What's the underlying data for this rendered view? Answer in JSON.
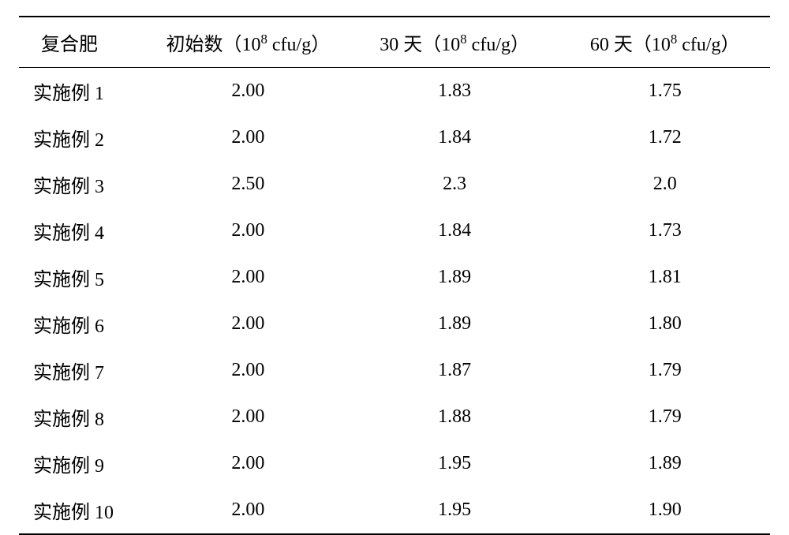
{
  "table": {
    "columns": [
      {
        "label_parts": [
          "复合肥"
        ],
        "class": "col1"
      },
      {
        "label_parts": [
          "初始数（10",
          "8",
          " cfu/g）"
        ],
        "class": "col2"
      },
      {
        "label_parts": [
          "30 天（10",
          "8",
          " cfu/g）"
        ],
        "class": "col3"
      },
      {
        "label_parts": [
          "60 天（10",
          "8",
          " cfu/g）"
        ],
        "class": "col4"
      }
    ],
    "rows": [
      {
        "name": "实施例 1",
        "initial": "2.00",
        "d30": "1.83",
        "d60": "1.75"
      },
      {
        "name": "实施例 2",
        "initial": "2.00",
        "d30": "1.84",
        "d60": "1.72"
      },
      {
        "name": "实施例 3",
        "initial": "2.50",
        "d30": "2.3",
        "d60": "2.0"
      },
      {
        "name": "实施例 4",
        "initial": "2.00",
        "d30": "1.84",
        "d60": "1.73"
      },
      {
        "name": "实施例 5",
        "initial": "2.00",
        "d30": "1.89",
        "d60": "1.81"
      },
      {
        "name": "实施例 6",
        "initial": "2.00",
        "d30": "1.89",
        "d60": "1.80"
      },
      {
        "name": "实施例 7",
        "initial": "2.00",
        "d30": "1.87",
        "d60": "1.79"
      },
      {
        "name": "实施例 8",
        "initial": "2.00",
        "d30": "1.88",
        "d60": "1.79"
      },
      {
        "name": "实施例 9",
        "initial": "2.00",
        "d30": "1.95",
        "d60": "1.89"
      },
      {
        "name": "实施例 10",
        "initial": "2.00",
        "d30": "1.95",
        "d60": "1.90"
      }
    ],
    "style": {
      "border_color": "#000000",
      "background_color": "#ffffff",
      "text_color": "#000000",
      "header_fontsize": 24,
      "cell_fontsize": 24,
      "top_border_width": 2,
      "header_bottom_border_width": 1.5,
      "bottom_border_width": 2
    }
  }
}
